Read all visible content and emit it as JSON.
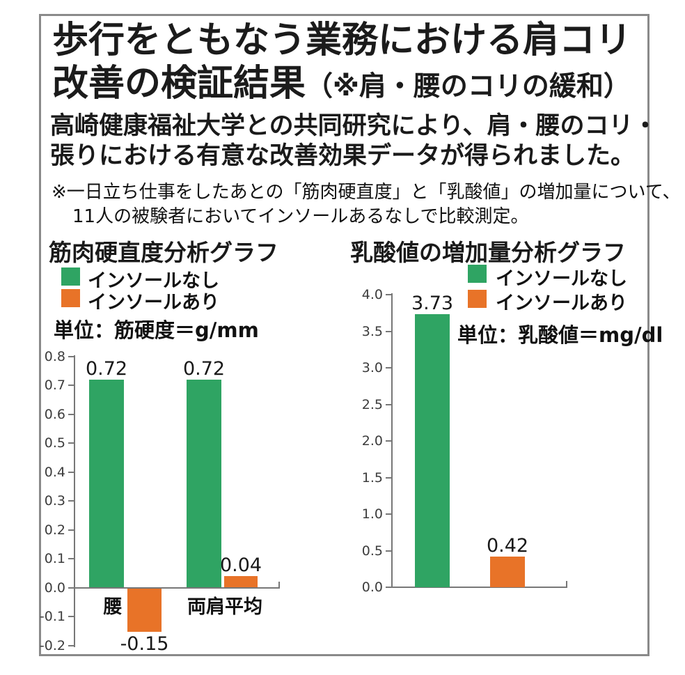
{
  "header": {
    "title_line1": "歩行をともなう業務における肩コリ",
    "title_line2_main": "改善の検証結果",
    "title_line2_paren": "（※肩・腰のコリの緩和）",
    "subtitle_line1": "高崎健康福祉大学との共同研究により、肩・腰のコリ・",
    "subtitle_line2": "張りにおける有意な改善効果データが得られました。",
    "note_line1": "※一日立ち仕事をしたあとの「筋肉硬直度」と「乳酸値」の増加量について、",
    "note_line2": "11人の被験者においてインソールあるなしで比較測定。"
  },
  "colors": {
    "green": "#2fa463",
    "orange": "#e87328",
    "chart_title_red": "#e5211e",
    "subtitle_orange": "#d8541f",
    "axis_gray": "#777777"
  },
  "chart_data": [
    {
      "type": "bar",
      "title": "筋肉硬直度分析グラフ",
      "unit_label": "単位：筋硬度＝g/mm",
      "legend": [
        {
          "label": "インソールなし",
          "color": "#2fa463"
        },
        {
          "label": "インソールあり",
          "color": "#e87328"
        }
      ],
      "categories": [
        "腰",
        "両肩平均"
      ],
      "series": [
        {
          "name": "インソールなし",
          "values": [
            0.72,
            0.72
          ],
          "labels": [
            "0.72",
            "0.72"
          ]
        },
        {
          "name": "インソールあり",
          "values": [
            -0.15,
            0.04
          ],
          "labels": [
            "-0.15",
            "0.04"
          ]
        }
      ],
      "ylim": [
        -0.2,
        0.8
      ],
      "ytick_step": 0.1,
      "grid": false,
      "legend_position": "top-left"
    },
    {
      "type": "bar",
      "title": "乳酸値の増加量分析グラフ",
      "unit_label": "単位：乳酸値＝mg/dl",
      "legend": [
        {
          "label": "インソールなし",
          "color": "#2fa463"
        },
        {
          "label": "インソールあり",
          "color": "#e87328"
        }
      ],
      "categories": [
        ""
      ],
      "series": [
        {
          "name": "インソールなし",
          "values": [
            3.73
          ],
          "labels": [
            "3.73"
          ]
        },
        {
          "name": "インソールあり",
          "values": [
            0.42
          ],
          "labels": [
            "0.42"
          ]
        }
      ],
      "ylim": [
        0.0,
        4.0
      ],
      "ytick_step": 0.5,
      "grid": false,
      "legend_position": "top-right"
    }
  ]
}
